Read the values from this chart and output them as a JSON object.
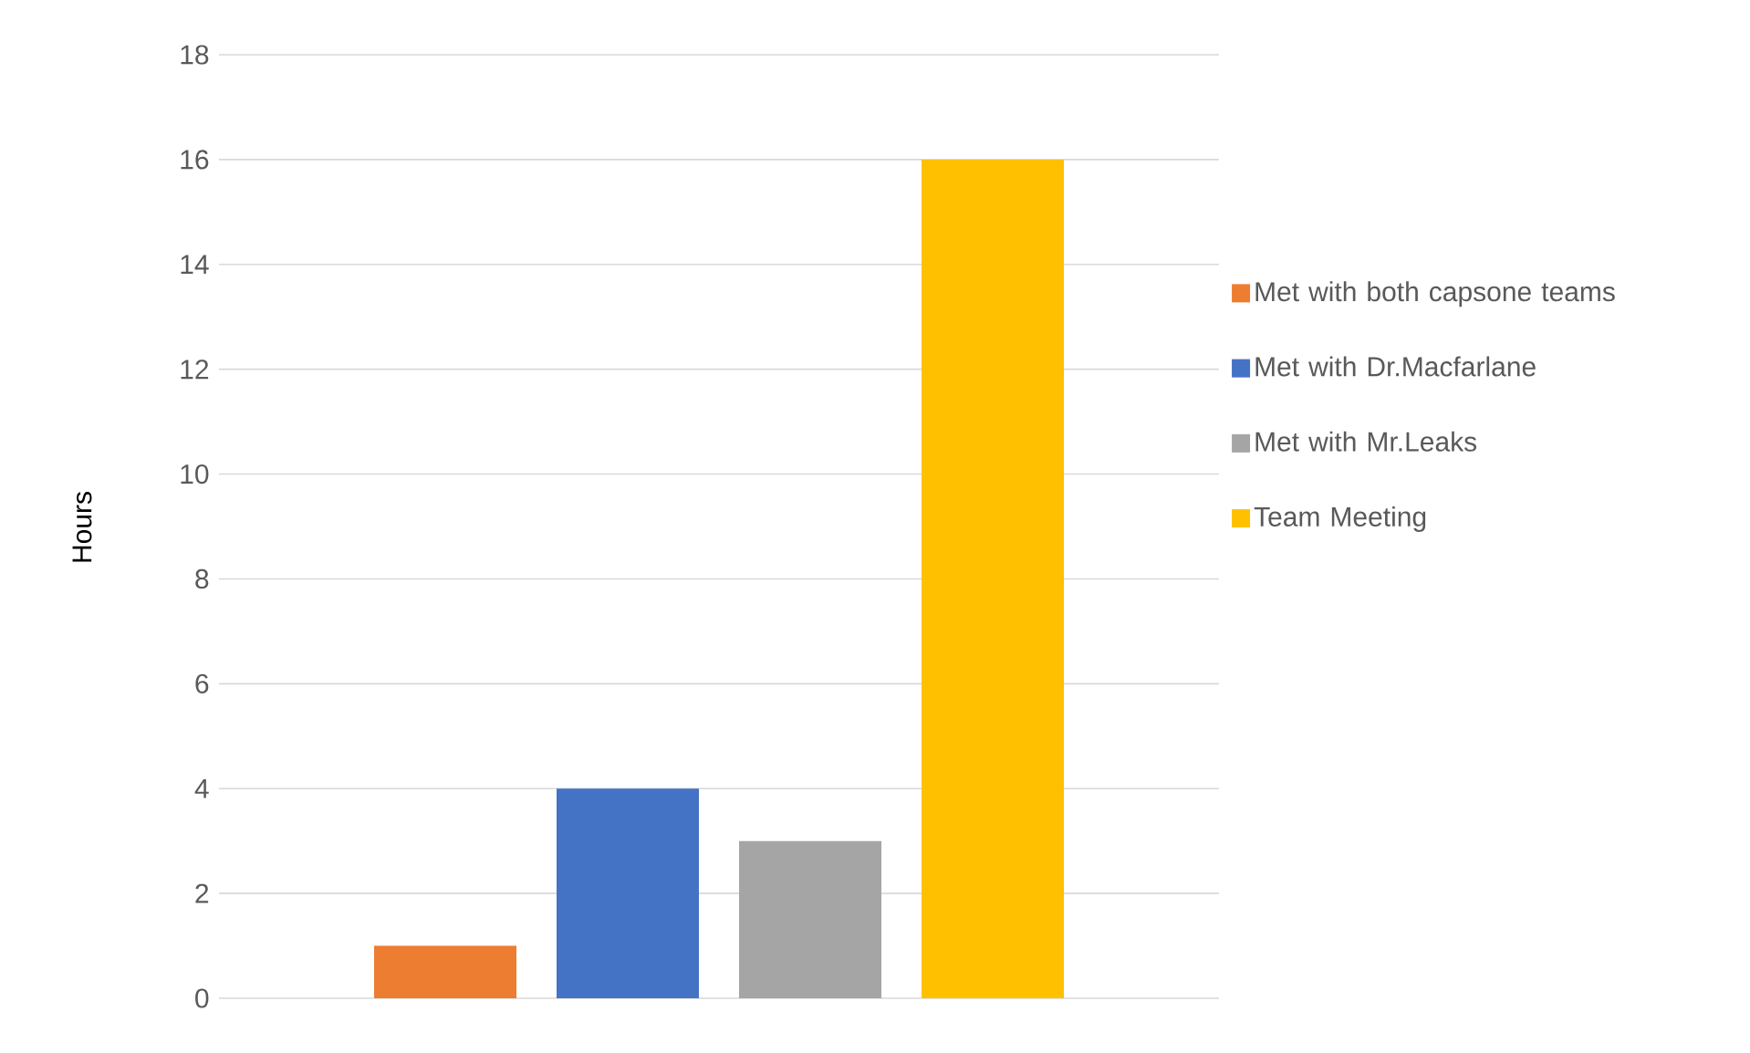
{
  "chart_data": {
    "type": "bar",
    "ylabel": "Hours",
    "categories": [
      null
    ],
    "series": [
      {
        "name": "Met with both capsone teams",
        "color": "#ed7d31",
        "values": [
          1
        ]
      },
      {
        "name": "Met with Dr.Macfarlane",
        "color": "#4472c4",
        "values": [
          4
        ]
      },
      {
        "name": "Met with Mr.Leaks",
        "color": "#a5a5a5",
        "values": [
          3
        ]
      },
      {
        "name": "Team Meeting",
        "color": "#ffc000",
        "values": [
          16
        ]
      }
    ],
    "ylim": [
      0,
      18
    ],
    "yticks": [
      0,
      2,
      4,
      6,
      8,
      10,
      12,
      14,
      16,
      18
    ],
    "grid": "y",
    "legend": "right",
    "tick_labels": "y"
  }
}
